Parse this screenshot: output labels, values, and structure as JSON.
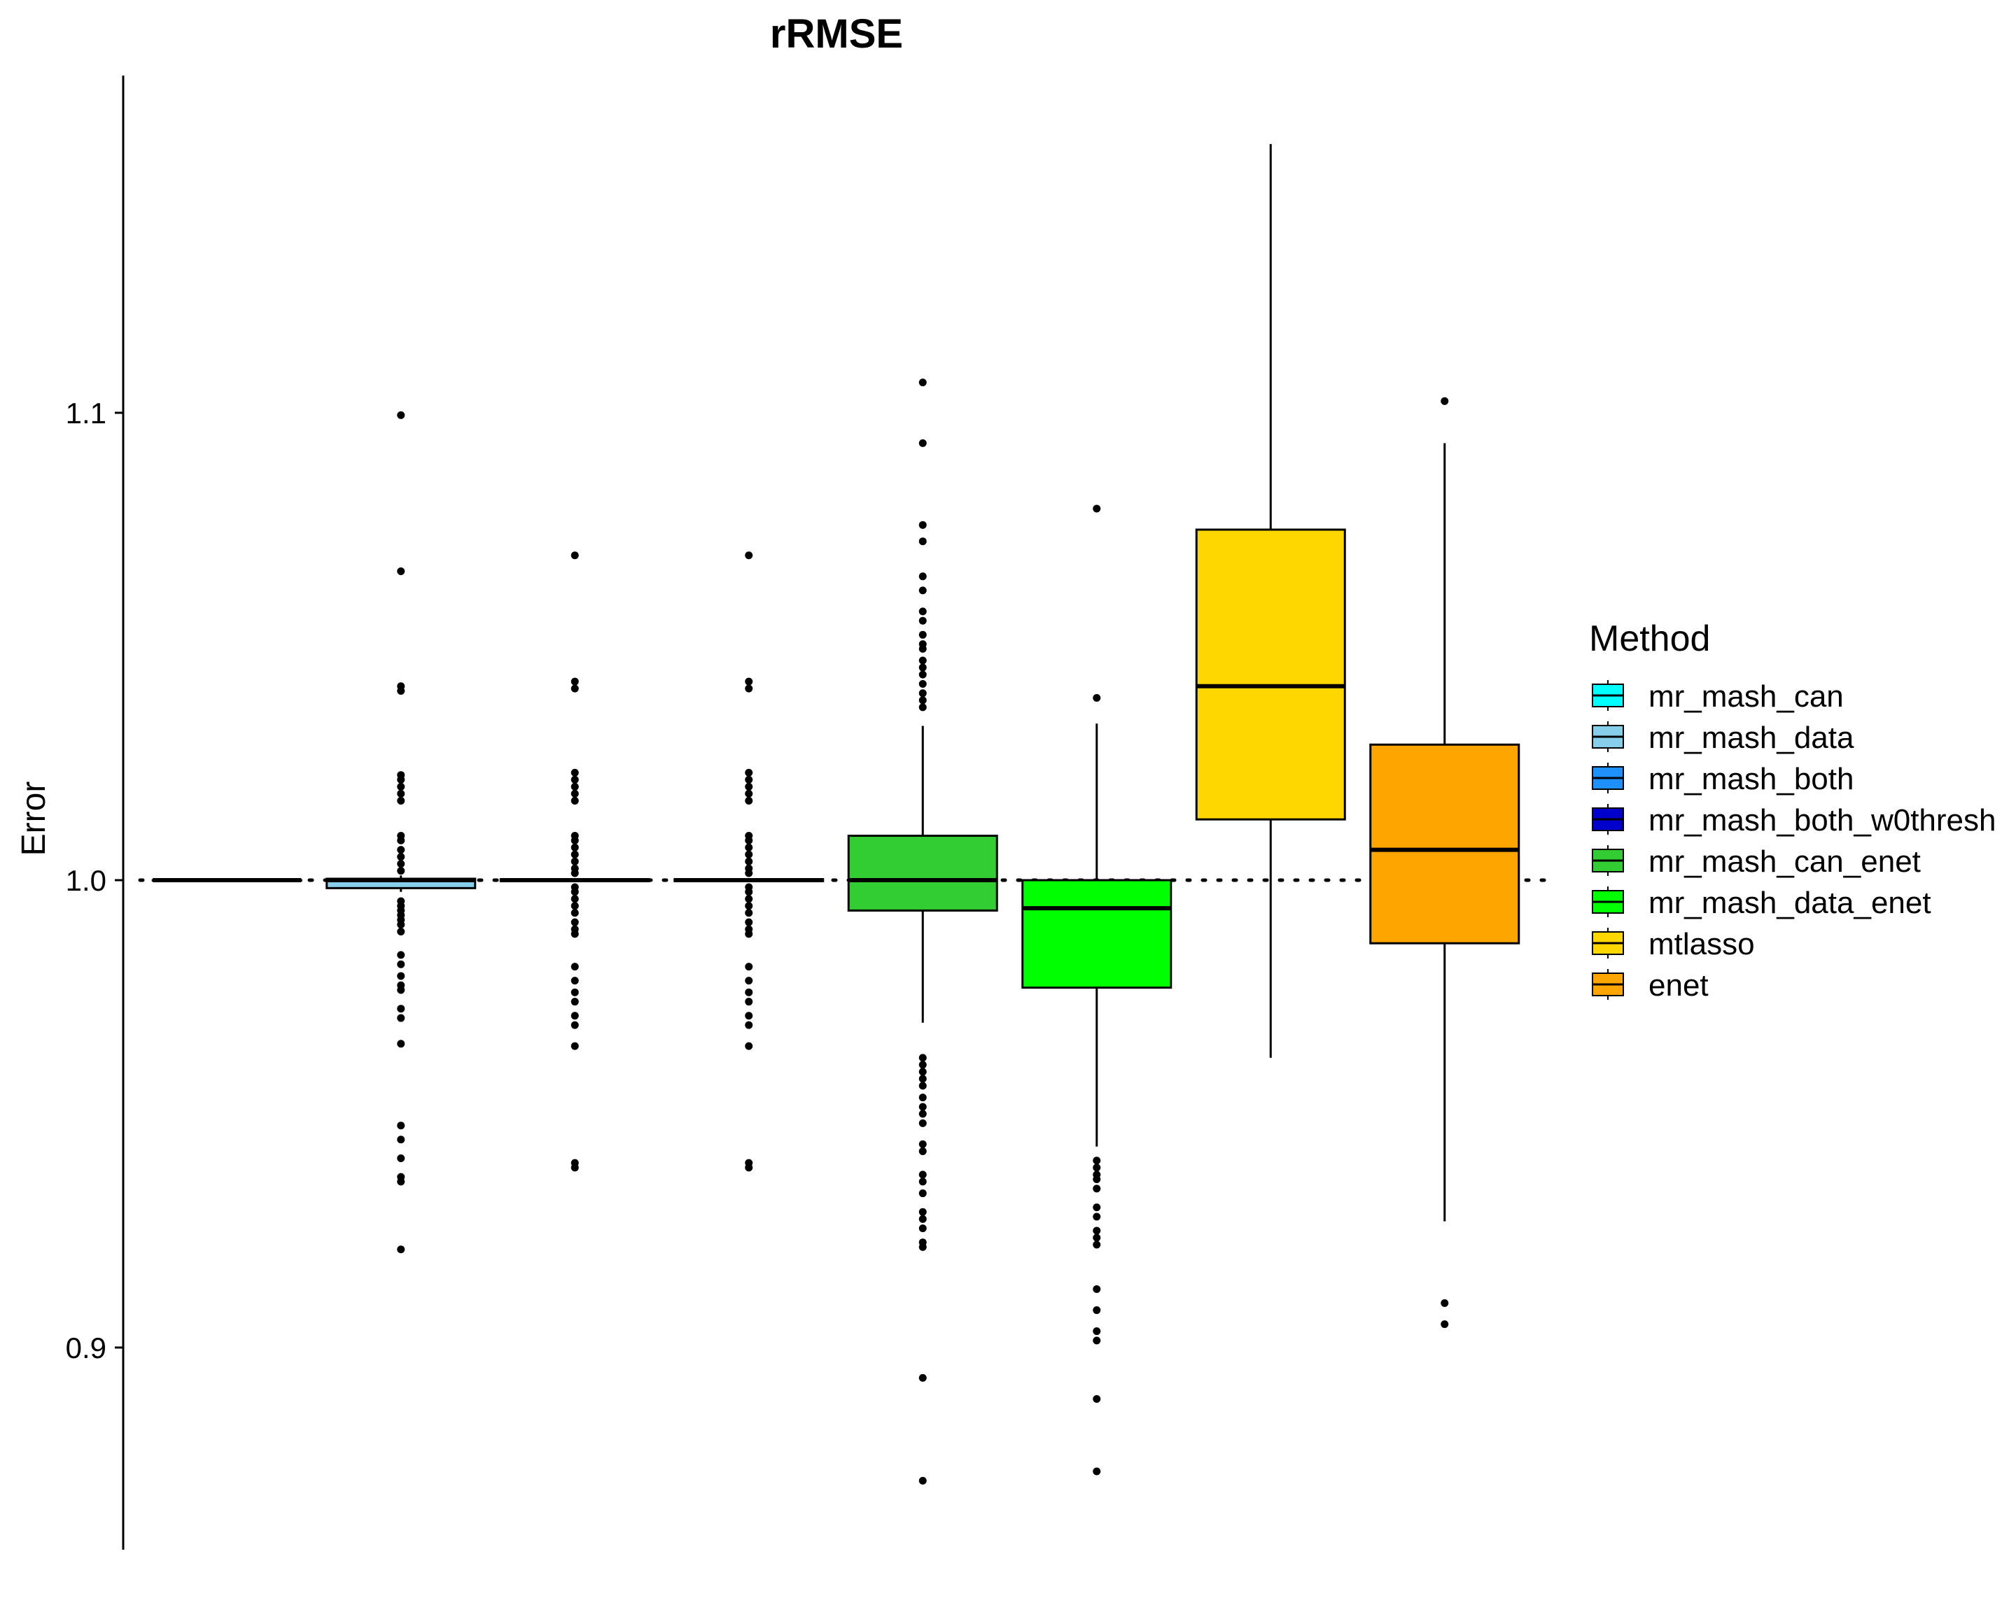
{
  "chart_data": {
    "type": "boxplot",
    "title": "rRMSE",
    "xlabel": "",
    "ylabel": "Error",
    "ylim": [
      0.855,
      1.17
    ],
    "yticks": [
      0.9,
      1.0,
      1.1
    ],
    "yticklabels": [
      "0.9",
      "1.0",
      "1.1"
    ],
    "reference_line": {
      "y": 1.0,
      "style": "dotted"
    },
    "grid": false,
    "legend": {
      "title": "Method",
      "position": "right"
    },
    "series": [
      {
        "name": "mr_mash_can",
        "color": "#00FFFF",
        "box": {
          "q1": 1.0,
          "median": 1.0,
          "q3": 1.0,
          "whisker_low": 1.0,
          "whisker_high": 1.0
        },
        "outliers": []
      },
      {
        "name": "mr_mash_data",
        "color": "#87CEEB",
        "box": {
          "q1": 0.9983,
          "median": 1.0,
          "q3": 1.0003,
          "whisker_low": 0.9975,
          "whisker_high": 1.001
        },
        "outliers": [
          1.0995,
          1.0661,
          1.0415,
          1.0405,
          1.0225,
          1.0215,
          1.02,
          1.0185,
          1.017,
          1.0095,
          1.0085,
          1.0065,
          1.005,
          1.0035,
          1.002,
          0.9955,
          0.9945,
          0.9935,
          0.9925,
          0.9915,
          0.9905,
          0.989,
          0.984,
          0.982,
          0.9795,
          0.9775,
          0.9765,
          0.9725,
          0.9705,
          0.965,
          0.9475,
          0.9445,
          0.9405,
          0.9365,
          0.9355,
          0.921
        ]
      },
      {
        "name": "mr_mash_both",
        "color": "#1E90FF",
        "box": {
          "q1": 0.9998,
          "median": 1.0,
          "q3": 1.0002,
          "whisker_low": 0.9996,
          "whisker_high": 1.0004
        },
        "outliers": [
          1.0695,
          1.0425,
          1.041,
          1.023,
          1.0215,
          1.02,
          1.0185,
          1.017,
          1.0095,
          1.0085,
          1.007,
          1.0055,
          1.004,
          1.0025,
          1.0015,
          0.9985,
          0.9975,
          0.996,
          0.9945,
          0.993,
          0.991,
          0.9895,
          0.9885,
          0.9815,
          0.9785,
          0.976,
          0.974,
          0.971,
          0.969,
          0.9645,
          0.9395,
          0.9385
        ]
      },
      {
        "name": "mr_mash_both_w0thresh",
        "color": "#0000CD",
        "box": {
          "q1": 0.9998,
          "median": 1.0,
          "q3": 1.0002,
          "whisker_low": 0.9996,
          "whisker_high": 1.0004
        },
        "outliers": [
          1.0695,
          1.0425,
          1.041,
          1.023,
          1.0215,
          1.02,
          1.0185,
          1.017,
          1.0095,
          1.0085,
          1.007,
          1.0055,
          1.004,
          1.0025,
          1.0015,
          0.9985,
          0.9975,
          0.996,
          0.9945,
          0.993,
          0.991,
          0.9895,
          0.9885,
          0.9815,
          0.9785,
          0.976,
          0.974,
          0.971,
          0.969,
          0.9645,
          0.9395,
          0.9385
        ]
      },
      {
        "name": "mr_mash_can_enet",
        "color": "#32CD32",
        "box": {
          "q1": 0.9935,
          "median": 1.0,
          "q3": 1.0095,
          "whisker_low": 0.9695,
          "whisker_high": 1.033
        },
        "outliers": [
          1.1065,
          1.0935,
          1.076,
          1.0725,
          1.065,
          1.062,
          1.0575,
          1.0555,
          1.0525,
          1.0505,
          1.0495,
          1.047,
          1.0455,
          1.044,
          1.042,
          1.04,
          1.0385,
          1.037,
          0.962,
          0.9605,
          0.959,
          0.9575,
          0.956,
          0.9535,
          0.9515,
          0.95,
          0.948,
          0.9435,
          0.942,
          0.937,
          0.9355,
          0.933,
          0.929,
          0.9275,
          0.9255,
          0.9225,
          0.9215,
          0.8935,
          0.8715
        ]
      },
      {
        "name": "mr_mash_data_enet",
        "color": "#00FF00",
        "box": {
          "q1": 0.977,
          "median": 0.994,
          "q3": 1.0,
          "whisker_low": 0.943,
          "whisker_high": 1.0335
        },
        "outliers": [
          1.0795,
          1.039,
          0.94,
          0.9385,
          0.937,
          0.936,
          0.934,
          0.93,
          0.928,
          0.925,
          0.9235,
          0.922,
          0.9125,
          0.908,
          0.9035,
          0.9015,
          0.889,
          0.8735
        ]
      },
      {
        "name": "mtlasso",
        "color": "#FFD700",
        "box": {
          "q1": 1.013,
          "median": 1.0415,
          "q3": 1.075,
          "whisker_low": 0.962,
          "whisker_high": 1.1575
        },
        "outliers": []
      },
      {
        "name": "enet",
        "color": "#FFA500",
        "box": {
          "q1": 0.9865,
          "median": 1.0065,
          "q3": 1.029,
          "whisker_low": 0.927,
          "whisker_high": 1.0935
        },
        "outliers": [
          1.1025,
          0.9095,
          0.905
        ]
      }
    ]
  }
}
